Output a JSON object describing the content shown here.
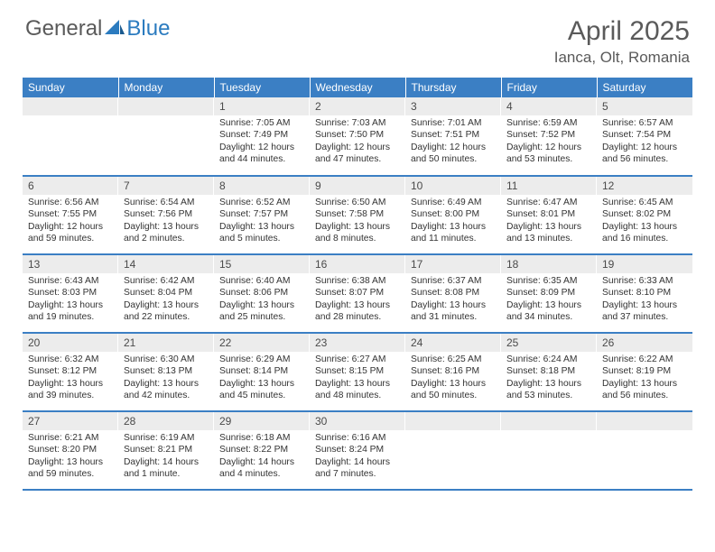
{
  "logo": {
    "general": "General",
    "blue": "Blue"
  },
  "title": "April 2025",
  "location": "Ianca, Olt, Romania",
  "colors": {
    "header_bg": "#3b7fc4",
    "header_text": "#ffffff",
    "daynum_bg": "#ececec",
    "text": "#333333",
    "logo_gray": "#5a5a5a",
    "logo_blue": "#2b7bbf"
  },
  "weekdays": [
    "Sunday",
    "Monday",
    "Tuesday",
    "Wednesday",
    "Thursday",
    "Friday",
    "Saturday"
  ],
  "weeks": [
    [
      null,
      null,
      {
        "n": "1",
        "sr": "7:05 AM",
        "ss": "7:49 PM",
        "dl": "12 hours and 44 minutes."
      },
      {
        "n": "2",
        "sr": "7:03 AM",
        "ss": "7:50 PM",
        "dl": "12 hours and 47 minutes."
      },
      {
        "n": "3",
        "sr": "7:01 AM",
        "ss": "7:51 PM",
        "dl": "12 hours and 50 minutes."
      },
      {
        "n": "4",
        "sr": "6:59 AM",
        "ss": "7:52 PM",
        "dl": "12 hours and 53 minutes."
      },
      {
        "n": "5",
        "sr": "6:57 AM",
        "ss": "7:54 PM",
        "dl": "12 hours and 56 minutes."
      }
    ],
    [
      {
        "n": "6",
        "sr": "6:56 AM",
        "ss": "7:55 PM",
        "dl": "12 hours and 59 minutes."
      },
      {
        "n": "7",
        "sr": "6:54 AM",
        "ss": "7:56 PM",
        "dl": "13 hours and 2 minutes."
      },
      {
        "n": "8",
        "sr": "6:52 AM",
        "ss": "7:57 PM",
        "dl": "13 hours and 5 minutes."
      },
      {
        "n": "9",
        "sr": "6:50 AM",
        "ss": "7:58 PM",
        "dl": "13 hours and 8 minutes."
      },
      {
        "n": "10",
        "sr": "6:49 AM",
        "ss": "8:00 PM",
        "dl": "13 hours and 11 minutes."
      },
      {
        "n": "11",
        "sr": "6:47 AM",
        "ss": "8:01 PM",
        "dl": "13 hours and 13 minutes."
      },
      {
        "n": "12",
        "sr": "6:45 AM",
        "ss": "8:02 PM",
        "dl": "13 hours and 16 minutes."
      }
    ],
    [
      {
        "n": "13",
        "sr": "6:43 AM",
        "ss": "8:03 PM",
        "dl": "13 hours and 19 minutes."
      },
      {
        "n": "14",
        "sr": "6:42 AM",
        "ss": "8:04 PM",
        "dl": "13 hours and 22 minutes."
      },
      {
        "n": "15",
        "sr": "6:40 AM",
        "ss": "8:06 PM",
        "dl": "13 hours and 25 minutes."
      },
      {
        "n": "16",
        "sr": "6:38 AM",
        "ss": "8:07 PM",
        "dl": "13 hours and 28 minutes."
      },
      {
        "n": "17",
        "sr": "6:37 AM",
        "ss": "8:08 PM",
        "dl": "13 hours and 31 minutes."
      },
      {
        "n": "18",
        "sr": "6:35 AM",
        "ss": "8:09 PM",
        "dl": "13 hours and 34 minutes."
      },
      {
        "n": "19",
        "sr": "6:33 AM",
        "ss": "8:10 PM",
        "dl": "13 hours and 37 minutes."
      }
    ],
    [
      {
        "n": "20",
        "sr": "6:32 AM",
        "ss": "8:12 PM",
        "dl": "13 hours and 39 minutes."
      },
      {
        "n": "21",
        "sr": "6:30 AM",
        "ss": "8:13 PM",
        "dl": "13 hours and 42 minutes."
      },
      {
        "n": "22",
        "sr": "6:29 AM",
        "ss": "8:14 PM",
        "dl": "13 hours and 45 minutes."
      },
      {
        "n": "23",
        "sr": "6:27 AM",
        "ss": "8:15 PM",
        "dl": "13 hours and 48 minutes."
      },
      {
        "n": "24",
        "sr": "6:25 AM",
        "ss": "8:16 PM",
        "dl": "13 hours and 50 minutes."
      },
      {
        "n": "25",
        "sr": "6:24 AM",
        "ss": "8:18 PM",
        "dl": "13 hours and 53 minutes."
      },
      {
        "n": "26",
        "sr": "6:22 AM",
        "ss": "8:19 PM",
        "dl": "13 hours and 56 minutes."
      }
    ],
    [
      {
        "n": "27",
        "sr": "6:21 AM",
        "ss": "8:20 PM",
        "dl": "13 hours and 59 minutes."
      },
      {
        "n": "28",
        "sr": "6:19 AM",
        "ss": "8:21 PM",
        "dl": "14 hours and 1 minute."
      },
      {
        "n": "29",
        "sr": "6:18 AM",
        "ss": "8:22 PM",
        "dl": "14 hours and 4 minutes."
      },
      {
        "n": "30",
        "sr": "6:16 AM",
        "ss": "8:24 PM",
        "dl": "14 hours and 7 minutes."
      },
      null,
      null,
      null
    ]
  ],
  "labels": {
    "sunrise": "Sunrise:",
    "sunset": "Sunset:",
    "daylight": "Daylight:"
  }
}
